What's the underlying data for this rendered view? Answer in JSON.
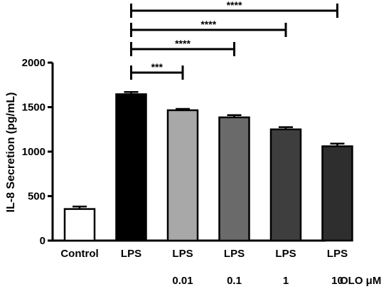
{
  "chart_data": {
    "type": "bar",
    "categories": [
      "Control",
      "LPS",
      "LPS",
      "LPS",
      "LPS",
      "LPS"
    ],
    "concentrations": [
      "",
      "",
      "0.01",
      "0.1",
      "1",
      "10"
    ],
    "concentration_unit": "OLO μM",
    "values": [
      355,
      1645,
      1465,
      1385,
      1250,
      1060
    ],
    "errors": [
      28,
      25,
      15,
      25,
      25,
      30
    ],
    "bar_colors": [
      "#ffffff",
      "#000000",
      "#a8a8a8",
      "#6a6a6a",
      "#3e3e3e",
      "#2e2e2e"
    ],
    "ylabel": "IL-8 Secretion (pg/mL)",
    "ylim": [
      0,
      2000
    ],
    "yticks": [
      0,
      500,
      1000,
      1500,
      2000
    ],
    "significance": [
      {
        "from": 1,
        "to": 2,
        "label": "***"
      },
      {
        "from": 1,
        "to": 3,
        "label": "****"
      },
      {
        "from": 1,
        "to": 4,
        "label": "****"
      },
      {
        "from": 1,
        "to": 5,
        "label": "****"
      }
    ],
    "grid": false,
    "legend": "none"
  }
}
